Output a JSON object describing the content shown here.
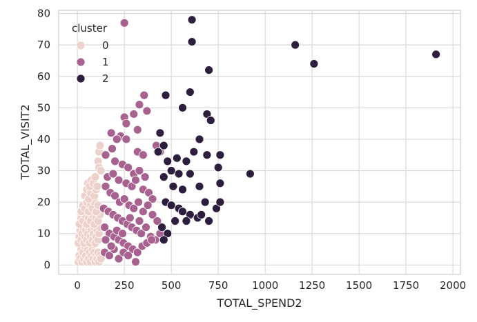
{
  "chart_data": {
    "type": "scatter",
    "title": "",
    "xlabel": "TOTAL_SPEND2",
    "ylabel": "TOTAL_VISIT2",
    "xlim": [
      -100,
      2040
    ],
    "ylim": [
      -3,
      81
    ],
    "xticks": [
      0,
      250,
      500,
      750,
      1000,
      1250,
      1500,
      1750,
      2000
    ],
    "yticks": [
      0,
      10,
      20,
      30,
      40,
      50,
      60,
      70,
      80
    ],
    "grid": true,
    "legend": {
      "title": "cluster",
      "placement": "top-left",
      "entries": [
        {
          "label": "0",
          "color": "#edd1cb"
        },
        {
          "label": "1",
          "color": "#a8628f"
        },
        {
          "label": "2",
          "color": "#2d1e3e"
        }
      ]
    },
    "series": [
      {
        "label": "0",
        "color": "#edd1cb",
        "points": [
          [
            5,
            1
          ],
          [
            10,
            3
          ],
          [
            15,
            2
          ],
          [
            20,
            5
          ],
          [
            25,
            1
          ],
          [
            30,
            4
          ],
          [
            35,
            2
          ],
          [
            40,
            6
          ],
          [
            45,
            3
          ],
          [
            50,
            1
          ],
          [
            55,
            5
          ],
          [
            60,
            2
          ],
          [
            65,
            4
          ],
          [
            70,
            1
          ],
          [
            75,
            3
          ],
          [
            80,
            5
          ],
          [
            85,
            2
          ],
          [
            90,
            4
          ],
          [
            95,
            1
          ],
          [
            100,
            3
          ],
          [
            105,
            2
          ],
          [
            110,
            4
          ],
          [
            115,
            1
          ],
          [
            120,
            3
          ],
          [
            125,
            2
          ],
          [
            5,
            7
          ],
          [
            10,
            9
          ],
          [
            15,
            11
          ],
          [
            20,
            8
          ],
          [
            25,
            10
          ],
          [
            30,
            12
          ],
          [
            35,
            7
          ],
          [
            40,
            9
          ],
          [
            45,
            11
          ],
          [
            50,
            8
          ],
          [
            55,
            10
          ],
          [
            60,
            12
          ],
          [
            65,
            7
          ],
          [
            70,
            9
          ],
          [
            75,
            11
          ],
          [
            80,
            8
          ],
          [
            85,
            10
          ],
          [
            90,
            12
          ],
          [
            95,
            7
          ],
          [
            100,
            9
          ],
          [
            105,
            11
          ],
          [
            110,
            8
          ],
          [
            115,
            10
          ],
          [
            120,
            12
          ],
          [
            10,
            13
          ],
          [
            20,
            15
          ],
          [
            30,
            14
          ],
          [
            40,
            16
          ],
          [
            50,
            13
          ],
          [
            60,
            15
          ],
          [
            70,
            14
          ],
          [
            80,
            16
          ],
          [
            90,
            13
          ],
          [
            100,
            15
          ],
          [
            110,
            14
          ],
          [
            120,
            16
          ],
          [
            20,
            17
          ],
          [
            30,
            19
          ],
          [
            40,
            18
          ],
          [
            50,
            20
          ],
          [
            60,
            17
          ],
          [
            70,
            19
          ],
          [
            80,
            18
          ],
          [
            90,
            20
          ],
          [
            100,
            17
          ],
          [
            110,
            19
          ],
          [
            40,
            22
          ],
          [
            50,
            24
          ],
          [
            60,
            21
          ],
          [
            70,
            23
          ],
          [
            80,
            25
          ],
          [
            90,
            22
          ],
          [
            100,
            24
          ],
          [
            55,
            26
          ],
          [
            65,
            25
          ],
          [
            75,
            27
          ],
          [
            85,
            26
          ],
          [
            95,
            28
          ],
          [
            105,
            25
          ],
          [
            110,
            33
          ],
          [
            115,
            31
          ],
          [
            115,
            36
          ],
          [
            120,
            38
          ],
          [
            125,
            30
          ]
        ]
      },
      {
        "label": "1",
        "color": "#a8628f",
        "points": [
          [
            250,
            77
          ],
          [
            355,
            54
          ],
          [
            330,
            51
          ],
          [
            370,
            49
          ],
          [
            300,
            48
          ],
          [
            250,
            47
          ],
          [
            260,
            45
          ],
          [
            320,
            43
          ],
          [
            180,
            42
          ],
          [
            230,
            41
          ],
          [
            210,
            40
          ],
          [
            260,
            40
          ],
          [
            420,
            38
          ],
          [
            440,
            36
          ],
          [
            320,
            36
          ],
          [
            350,
            35
          ],
          [
            150,
            35
          ],
          [
            185,
            37
          ],
          [
            200,
            33
          ],
          [
            240,
            32
          ],
          [
            270,
            31
          ],
          [
            300,
            29
          ],
          [
            330,
            30
          ],
          [
            160,
            28
          ],
          [
            190,
            29
          ],
          [
            220,
            27
          ],
          [
            260,
            26
          ],
          [
            290,
            25
          ],
          [
            310,
            27
          ],
          [
            350,
            24
          ],
          [
            380,
            23
          ],
          [
            400,
            21
          ],
          [
            150,
            25
          ],
          [
            175,
            23
          ],
          [
            200,
            22
          ],
          [
            225,
            20
          ],
          [
            250,
            21
          ],
          [
            275,
            19
          ],
          [
            300,
            18
          ],
          [
            325,
            20
          ],
          [
            350,
            17
          ],
          [
            375,
            19
          ],
          [
            400,
            16
          ],
          [
            425,
            14
          ],
          [
            140,
            18
          ],
          [
            165,
            17
          ],
          [
            190,
            16
          ],
          [
            215,
            15
          ],
          [
            240,
            14
          ],
          [
            265,
            13
          ],
          [
            290,
            12
          ],
          [
            315,
            11
          ],
          [
            340,
            10
          ],
          [
            365,
            12
          ],
          [
            390,
            9
          ],
          [
            415,
            8
          ],
          [
            440,
            10
          ],
          [
            145,
            12
          ],
          [
            170,
            10
          ],
          [
            195,
            9
          ],
          [
            220,
            8
          ],
          [
            245,
            7
          ],
          [
            270,
            6
          ],
          [
            295,
            5
          ],
          [
            320,
            4
          ],
          [
            345,
            6
          ],
          [
            370,
            7
          ],
          [
            395,
            8
          ],
          [
            145,
            4
          ],
          [
            170,
            3
          ],
          [
            195,
            5
          ],
          [
            220,
            2
          ],
          [
            245,
            4
          ],
          [
            270,
            3
          ],
          [
            310,
            1
          ],
          [
            150,
            8
          ],
          [
            180,
            6
          ],
          [
            210,
            11
          ],
          [
            240,
            10
          ],
          [
            280,
            15
          ],
          [
            330,
            14
          ],
          [
            360,
            28
          ]
        ]
      },
      {
        "label": "2",
        "color": "#2d1e3e",
        "points": [
          [
            610,
            78
          ],
          [
            610,
            71
          ],
          [
            1160,
            70
          ],
          [
            1910,
            67
          ],
          [
            1260,
            64
          ],
          [
            700,
            62
          ],
          [
            600,
            55
          ],
          [
            470,
            54
          ],
          [
            560,
            50
          ],
          [
            690,
            48
          ],
          [
            710,
            46
          ],
          [
            440,
            42
          ],
          [
            650,
            40
          ],
          [
            460,
            38
          ],
          [
            430,
            36
          ],
          [
            530,
            34
          ],
          [
            480,
            33
          ],
          [
            580,
            33
          ],
          [
            620,
            36
          ],
          [
            690,
            35
          ],
          [
            760,
            35
          ],
          [
            500,
            30
          ],
          [
            540,
            29
          ],
          [
            600,
            29
          ],
          [
            750,
            31
          ],
          [
            920,
            29
          ],
          [
            460,
            28
          ],
          [
            510,
            25
          ],
          [
            560,
            24
          ],
          [
            650,
            25
          ],
          [
            760,
            26
          ],
          [
            470,
            20
          ],
          [
            500,
            19
          ],
          [
            540,
            18
          ],
          [
            560,
            17
          ],
          [
            600,
            16
          ],
          [
            640,
            15
          ],
          [
            680,
            20
          ],
          [
            700,
            14
          ],
          [
            740,
            18
          ],
          [
            760,
            20
          ],
          [
            520,
            14
          ],
          [
            580,
            14
          ],
          [
            660,
            16
          ],
          [
            450,
            12
          ],
          [
            480,
            10
          ],
          [
            460,
            8
          ]
        ]
      }
    ]
  }
}
